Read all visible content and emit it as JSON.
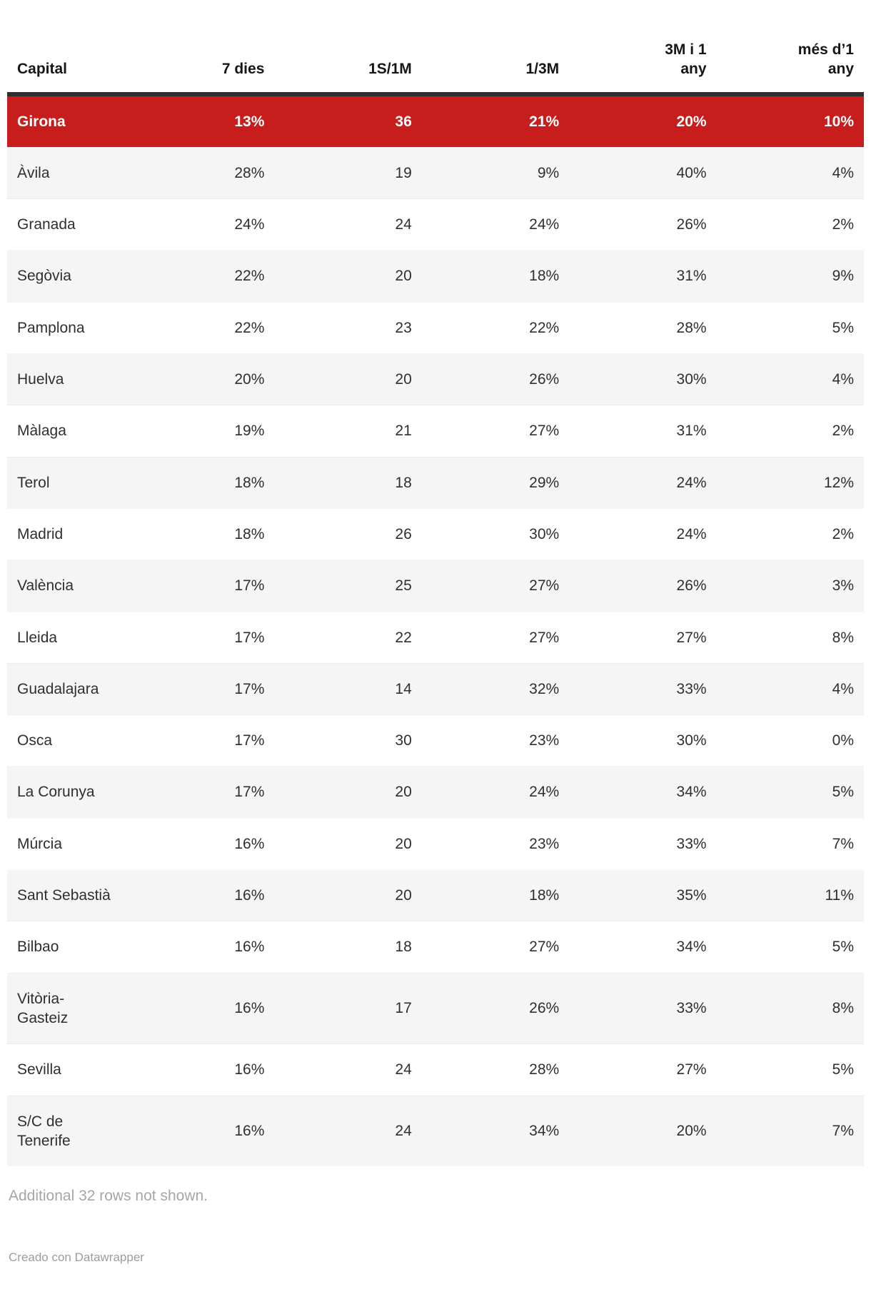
{
  "chart_data": {
    "type": "table",
    "title": "",
    "columns": [
      "Capital",
      "7 dies",
      "1S/1M",
      "1/3M",
      "3M i 1 any",
      "més d’1 any"
    ],
    "column_labels_display": [
      "Capital",
      "7 dies",
      "1S/1M",
      "1/3M",
      "3M i 1\nany",
      "més d’1\nany"
    ],
    "highlighted_row": "Girona",
    "rows": [
      [
        "Girona",
        "13%",
        "36",
        "21%",
        "20%",
        "10%"
      ],
      [
        "Àvila",
        "28%",
        "19",
        "9%",
        "40%",
        "4%"
      ],
      [
        "Granada",
        "24%",
        "24",
        "24%",
        "26%",
        "2%"
      ],
      [
        "Segòvia",
        "22%",
        "20",
        "18%",
        "31%",
        "9%"
      ],
      [
        "Pamplona",
        "22%",
        "23",
        "22%",
        "28%",
        "5%"
      ],
      [
        "Huelva",
        "20%",
        "20",
        "26%",
        "30%",
        "4%"
      ],
      [
        "Màlaga",
        "19%",
        "21",
        "27%",
        "31%",
        "2%"
      ],
      [
        "Terol",
        "18%",
        "18",
        "29%",
        "24%",
        "12%"
      ],
      [
        "Madrid",
        "18%",
        "26",
        "30%",
        "24%",
        "2%"
      ],
      [
        "València",
        "17%",
        "25",
        "27%",
        "26%",
        "3%"
      ],
      [
        "Lleida",
        "17%",
        "22",
        "27%",
        "27%",
        "8%"
      ],
      [
        "Guadalajara",
        "17%",
        "14",
        "32%",
        "33%",
        "4%"
      ],
      [
        "Osca",
        "17%",
        "30",
        "23%",
        "30%",
        "0%"
      ],
      [
        "La Corunya",
        "17%",
        "20",
        "24%",
        "34%",
        "5%"
      ],
      [
        "Múrcia",
        "16%",
        "20",
        "23%",
        "33%",
        "7%"
      ],
      [
        "Sant Sebastià",
        "16%",
        "20",
        "18%",
        "35%",
        "11%"
      ],
      [
        "Bilbao",
        "16%",
        "18",
        "27%",
        "34%",
        "5%"
      ],
      [
        "Vitòria-\nGasteiz",
        "16%",
        "17",
        "26%",
        "33%",
        "8%"
      ],
      [
        "Sevilla",
        "16%",
        "24",
        "28%",
        "27%",
        "5%"
      ],
      [
        "S/C de\nTenerife",
        "16%",
        "24",
        "34%",
        "20%",
        "7%"
      ]
    ],
    "layout_hints": {
      "striped": true,
      "first_row_highlighted": true,
      "numeric_columns_right_aligned": true
    }
  },
  "colors": {
    "highlight_bg": "#c71e1d",
    "highlight_text": "#ffffff",
    "stripe_bg": "#f5f5f5",
    "header_rule": "#2f2f2f",
    "body_text": "#2f2f2f",
    "note_text": "#a6a6a6"
  },
  "footer": {
    "note": "Additional 32 rows not shown.",
    "attribution": "Creado con Datawrapper"
  }
}
